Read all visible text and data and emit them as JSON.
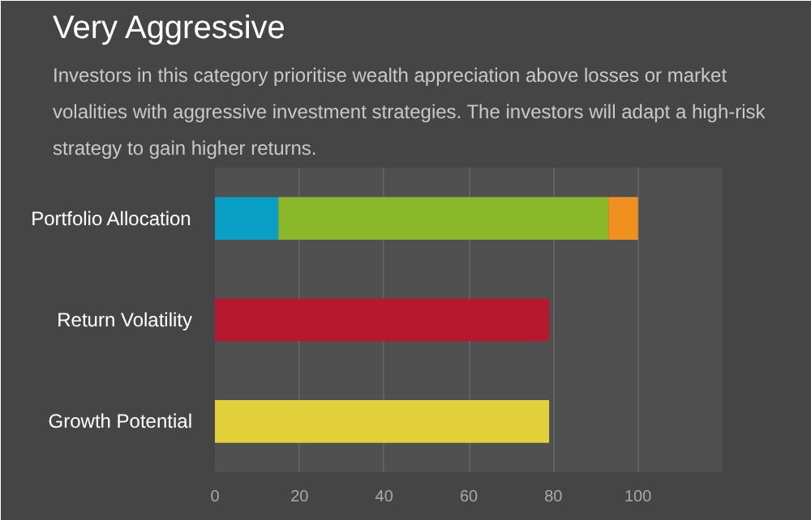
{
  "chart_data": {
    "type": "bar",
    "orientation": "horizontal",
    "stacked": true,
    "title": "Very Aggressive",
    "subtitle": "Investors in this category prioritise wealth appreciation above losses or market volalities with aggressive investment strategies. The investors will adapt a high-risk strategy to gain higher returns.",
    "categories": [
      "Portfolio Allocation",
      "Return Volatility",
      "Growth Potential"
    ],
    "series": [
      {
        "color": "#0a9fc4",
        "values": [
          15,
          null,
          null
        ]
      },
      {
        "color": "#8ab82a",
        "values": [
          78,
          null,
          null
        ]
      },
      {
        "color": "#f0901e",
        "values": [
          7,
          null,
          null
        ]
      },
      {
        "color": "#b8182e",
        "values": [
          null,
          79,
          null
        ]
      },
      {
        "color": "#e2d03a",
        "values": [
          null,
          null,
          79
        ]
      }
    ],
    "xlim": [
      0,
      120
    ],
    "xticks": [
      0,
      20,
      40,
      60,
      80,
      100
    ],
    "grid": "x"
  }
}
